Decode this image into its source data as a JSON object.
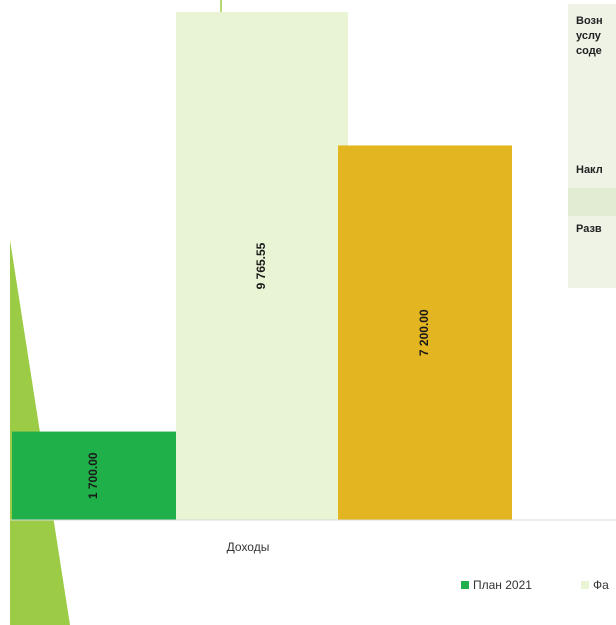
{
  "chart_data": {
    "type": "bar",
    "categories": [
      "Доходы"
    ],
    "series": [
      {
        "name": "План 2021",
        "values": [
          1700.0
        ],
        "color": "#20b04a",
        "label": "1 700.00"
      },
      {
        "name": "Фа",
        "values": [
          9765.55
        ],
        "color": "#e8f4d4",
        "label": "9 765.55"
      },
      {
        "name": "",
        "values": [
          7200.0
        ],
        "color": "#e3b520",
        "label": "7 200.00"
      }
    ],
    "title": "",
    "xlabel": "",
    "ylabel": "",
    "ylim": [
      0,
      9765.55
    ],
    "grid": false,
    "legend_position": "bottom"
  },
  "side_panel": {
    "background": "#eef3e6",
    "lines": [
      "Возн",
      "услу",
      "соде",
      "Накл",
      "Разв"
    ]
  },
  "decor": {
    "wedge_color": "#9ccb45",
    "accent_line_color": "#9ccb45"
  }
}
